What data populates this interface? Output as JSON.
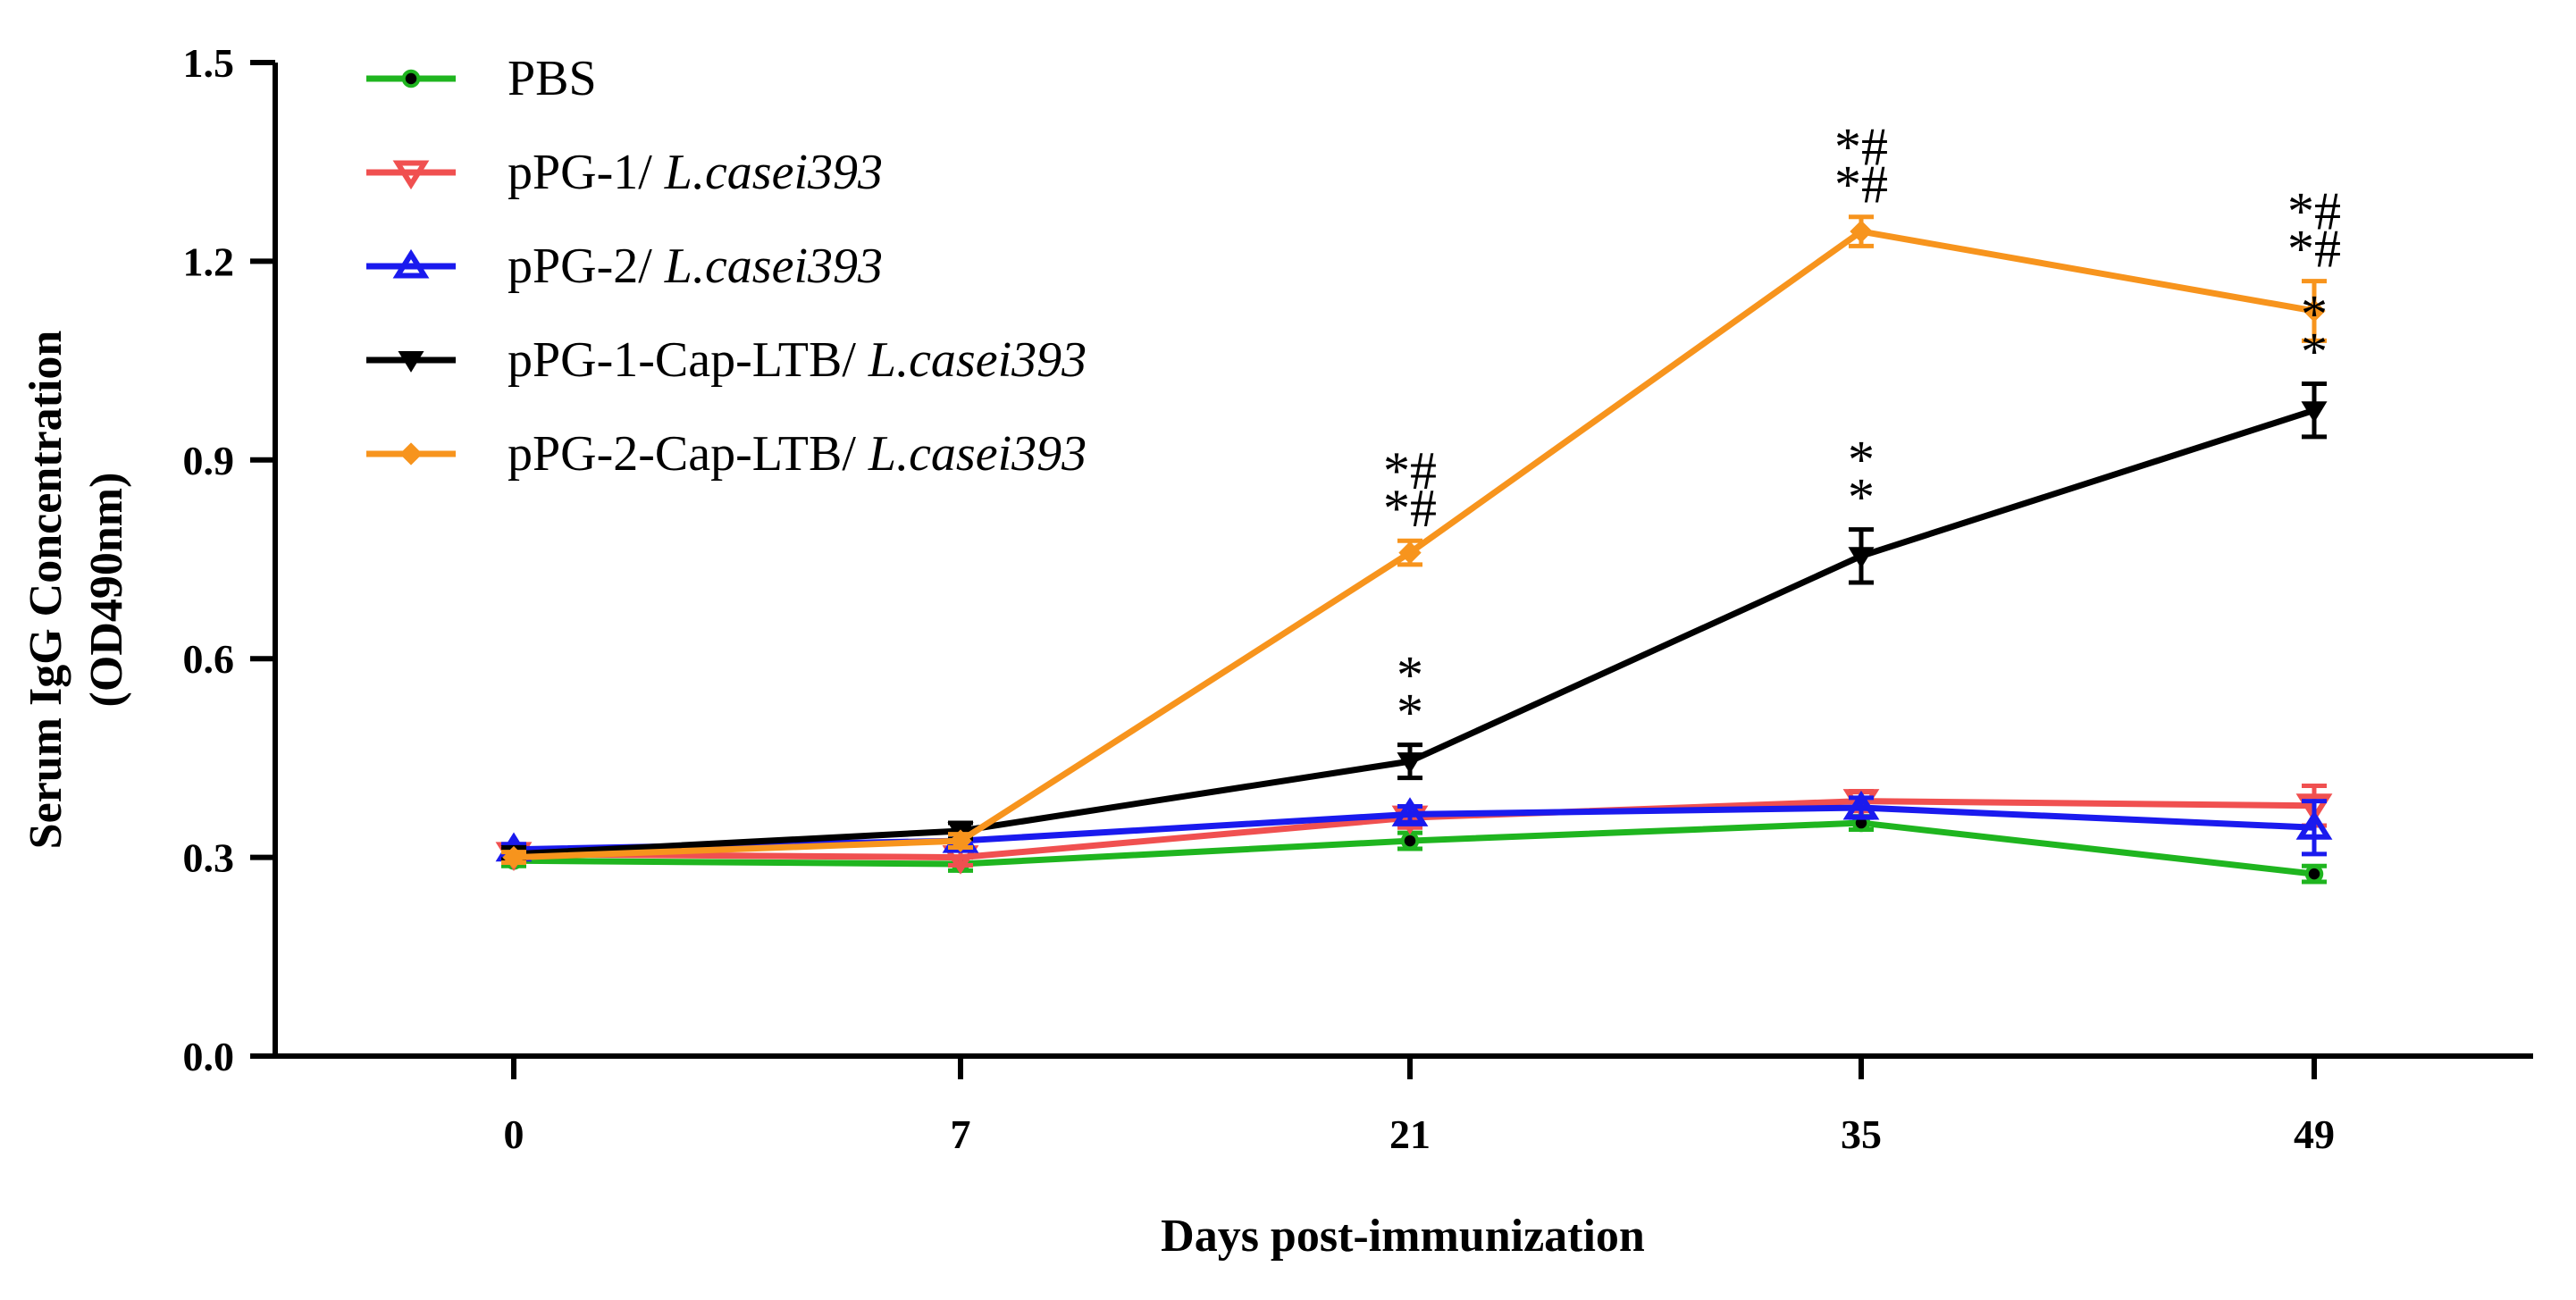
{
  "chart_data": {
    "type": "line",
    "title": "",
    "xlabel": "Days post-immunization",
    "ylabel_line1": "Serum IgG Concentration",
    "ylabel_line2": "(OD490nm)",
    "categories": [
      "0",
      "7",
      "21",
      "35",
      "49"
    ],
    "ylim": [
      0,
      1.5
    ],
    "yticks": [
      "0.0",
      "0.3",
      "0.6",
      "0.9",
      "1.2",
      "1.5"
    ],
    "legend_position": "top-left",
    "series": [
      {
        "name": "PBS",
        "name_plain": "PBS",
        "name_italic": "",
        "color": "#1fb51f",
        "marker": "circle",
        "values": [
          0.295,
          0.29,
          0.325,
          0.352,
          0.275
        ],
        "errors": [
          0.008,
          0.01,
          0.012,
          0.01,
          0.012
        ]
      },
      {
        "name": "pPG-1/ L.casei393",
        "name_plain": "pPG-1/ ",
        "name_italic": "L.casei393",
        "color": "#f05050",
        "marker": "triangle-down-open",
        "values": [
          0.305,
          0.3,
          0.36,
          0.385,
          0.378
        ],
        "errors": [
          0.01,
          0.012,
          0.015,
          0.015,
          0.03
        ]
      },
      {
        "name": "pPG-2/ L.casei393",
        "name_plain": "pPG-2/ ",
        "name_italic": "L.casei393",
        "color": "#1a1aee",
        "marker": "triangle-up-open",
        "values": [
          0.312,
          0.325,
          0.365,
          0.375,
          0.345
        ],
        "errors": [
          0.008,
          0.01,
          0.012,
          0.015,
          0.04
        ]
      },
      {
        "name": "pPG-1-Cap-LTB/ L.casei393",
        "name_plain": "pPG-1-Cap-LTB/ ",
        "name_italic": "L.casei393",
        "color": "#000000",
        "marker": "triangle-down-filled",
        "values": [
          0.305,
          0.34,
          0.445,
          0.755,
          0.975
        ],
        "errors": [
          0.008,
          0.012,
          0.025,
          0.04,
          0.04
        ]
      },
      {
        "name": "pPG-2-Cap-LTB/ L.casei393",
        "name_plain": "pPG-2-Cap-LTB/ ",
        "name_italic": "L.casei393",
        "color": "#f7941d",
        "marker": "diamond",
        "values": [
          0.3,
          0.325,
          0.76,
          1.245,
          1.125
        ],
        "errors": [
          0.008,
          0.01,
          0.018,
          0.022,
          0.045
        ]
      }
    ],
    "annotations": [
      {
        "category": "21",
        "series": "pPG-2-Cap-LTB/ L.casei393",
        "top": "*#",
        "bottom": "*#"
      },
      {
        "category": "35",
        "series": "pPG-2-Cap-LTB/ L.casei393",
        "top": "*#",
        "bottom": "*#"
      },
      {
        "category": "49",
        "series": "pPG-2-Cap-LTB/ L.casei393",
        "top": "*#",
        "bottom": "*#"
      },
      {
        "category": "21",
        "series": "pPG-1-Cap-LTB/ L.casei393",
        "top": "*",
        "bottom": "*"
      },
      {
        "category": "35",
        "series": "pPG-1-Cap-LTB/ L.casei393",
        "top": "*",
        "bottom": "*"
      },
      {
        "category": "49",
        "series": "pPG-1-Cap-LTB/ L.casei393",
        "top": "*",
        "bottom": "*"
      }
    ]
  }
}
